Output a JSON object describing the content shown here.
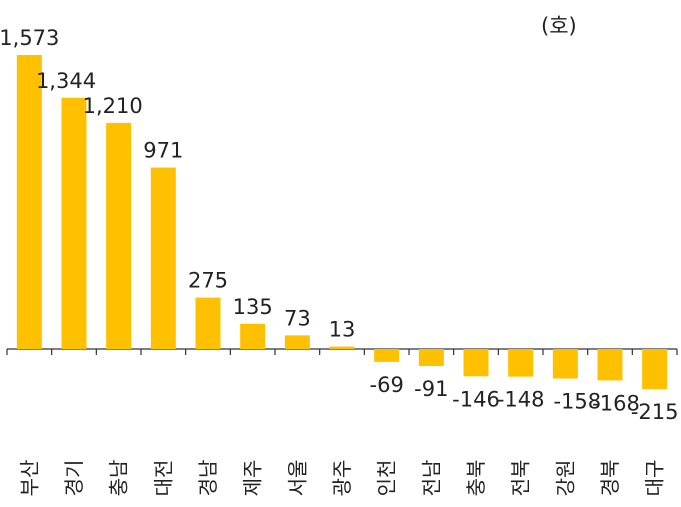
{
  "unit_label": "(호)",
  "colors": {
    "bar": "#FFC000",
    "axis": "#333333",
    "text": "#222222"
  },
  "chart_data": {
    "type": "bar",
    "unit": "(호)",
    "categories": [
      "부산",
      "경기",
      "충남",
      "대전",
      "경남",
      "제주",
      "서울",
      "광주",
      "인천",
      "전남",
      "충북",
      "전북",
      "강원",
      "경북",
      "대구"
    ],
    "values": [
      1573,
      1344,
      1210,
      971,
      275,
      135,
      73,
      13,
      -69,
      -91,
      -146,
      -148,
      -158,
      -168,
      -215
    ],
    "value_labels": [
      "1,573",
      "1,344",
      "1,210",
      "971",
      "275",
      "135",
      "73",
      "13",
      "-69",
      "-91",
      "-146",
      "-148",
      "-158",
      "-168",
      "-215"
    ],
    "ylim": [
      -215,
      1573
    ],
    "grid": false,
    "legend": "none"
  }
}
